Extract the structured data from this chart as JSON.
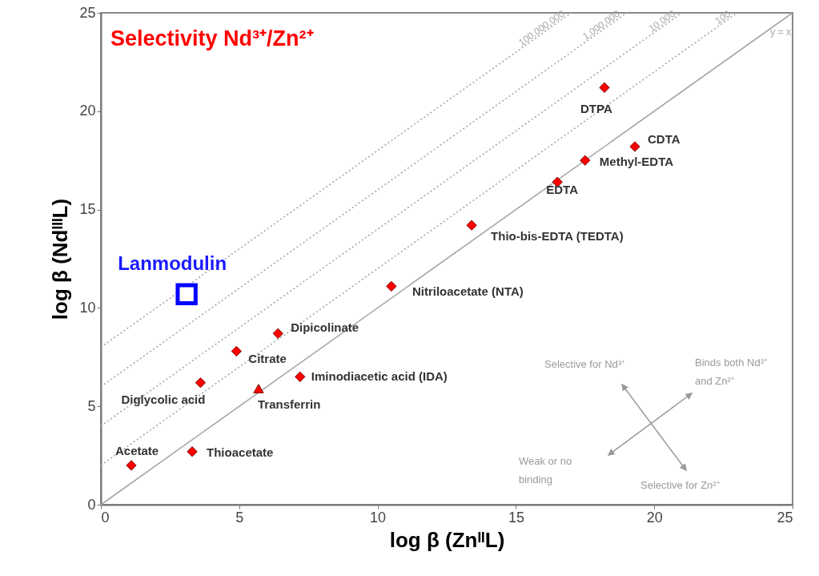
{
  "chart_data": {
    "type": "scatter",
    "title": "Selectivity Nd³⁺/Zn²⁺",
    "xlabel": "log β (ZnᴵᴵL)",
    "ylabel": "log β (NdᴵᴵᴵL)",
    "xlim": [
      0,
      25
    ],
    "ylim": [
      0,
      25
    ],
    "xticks": [
      0,
      5,
      10,
      15,
      20,
      25
    ],
    "yticks": [
      0,
      5,
      10,
      15,
      20,
      25
    ],
    "grid": false,
    "series": [
      {
        "type": "line",
        "name": "y = x",
        "color": "#a6a6a6",
        "line_style": "solid",
        "marker": "none",
        "x": [
          0,
          25
        ],
        "values": [
          0,
          25
        ]
      },
      {
        "type": "line",
        "name": "100",
        "color": "#a6a6a6",
        "line_style": "dotted",
        "marker": "none",
        "x": [
          0,
          23
        ],
        "values": [
          2,
          25
        ]
      },
      {
        "type": "line",
        "name": "10,000",
        "color": "#a6a6a6",
        "line_style": "dotted",
        "marker": "none",
        "x": [
          0,
          21
        ],
        "values": [
          4,
          25
        ]
      },
      {
        "type": "line",
        "name": "1,000,000",
        "color": "#a6a6a6",
        "line_style": "dotted",
        "marker": "none",
        "x": [
          0,
          19
        ],
        "values": [
          6,
          25
        ]
      },
      {
        "type": "line",
        "name": "100,000,000",
        "color": "#a6a6a6",
        "line_style": "dotted",
        "marker": "none",
        "x": [
          0,
          17
        ],
        "values": [
          8,
          25
        ]
      },
      {
        "color": "#ff0000",
        "marker": "diamond",
        "x": [
          1.1,
          3.3,
          3.6,
          4.9,
          6.4,
          7.2,
          10.5,
          13.4,
          16.5,
          17.5,
          19.3,
          18.2
        ],
        "values": [
          2.0,
          2.7,
          6.2,
          7.8,
          8.7,
          6.5,
          11.1,
          14.2,
          16.4,
          17.5,
          18.2,
          21.2
        ]
      },
      {
        "color": "#ff0000",
        "marker": "triangle",
        "x": [
          5.7
        ],
        "values": [
          5.9
        ]
      },
      {
        "color": "#0000ff",
        "marker": "square",
        "x": [
          3.1
        ],
        "values": [
          10.7
        ]
      }
    ],
    "annotations": [
      {
        "text": "Acetate",
        "x": 1.1,
        "y": 2.0
      },
      {
        "text": "Thioacetate",
        "x": 3.3,
        "y": 2.7
      },
      {
        "text": "Diglycolic acid",
        "x": 3.6,
        "y": 6.2
      },
      {
        "text": "Citrate",
        "x": 4.9,
        "y": 7.8
      },
      {
        "text": "Dipicolinate",
        "x": 6.4,
        "y": 8.7
      },
      {
        "text": "Transferrin",
        "x": 5.7,
        "y": 5.9
      },
      {
        "text": "Iminodiacetic acid (IDA)",
        "x": 7.2,
        "y": 6.5
      },
      {
        "text": "Nitriloacetate (NTA)",
        "x": 10.5,
        "y": 11.1
      },
      {
        "text": "Thio-bis-EDTA (TEDTA)",
        "x": 13.4,
        "y": 14.2
      },
      {
        "text": "EDTA",
        "x": 16.5,
        "y": 16.4
      },
      {
        "text": "Methyl-EDTA",
        "x": 17.5,
        "y": 17.5
      },
      {
        "text": "CDTA",
        "x": 19.3,
        "y": 18.2
      },
      {
        "text": "DTPA",
        "x": 18.2,
        "y": 21.2
      },
      {
        "text": "Lanmodulin",
        "x": 3.1,
        "y": 10.7
      },
      "Selective for Nd³⁺",
      "Binds both Nd³⁺ and Zn²⁺",
      "Weak or no binding",
      "Selective for Zn²⁺"
    ]
  }
}
